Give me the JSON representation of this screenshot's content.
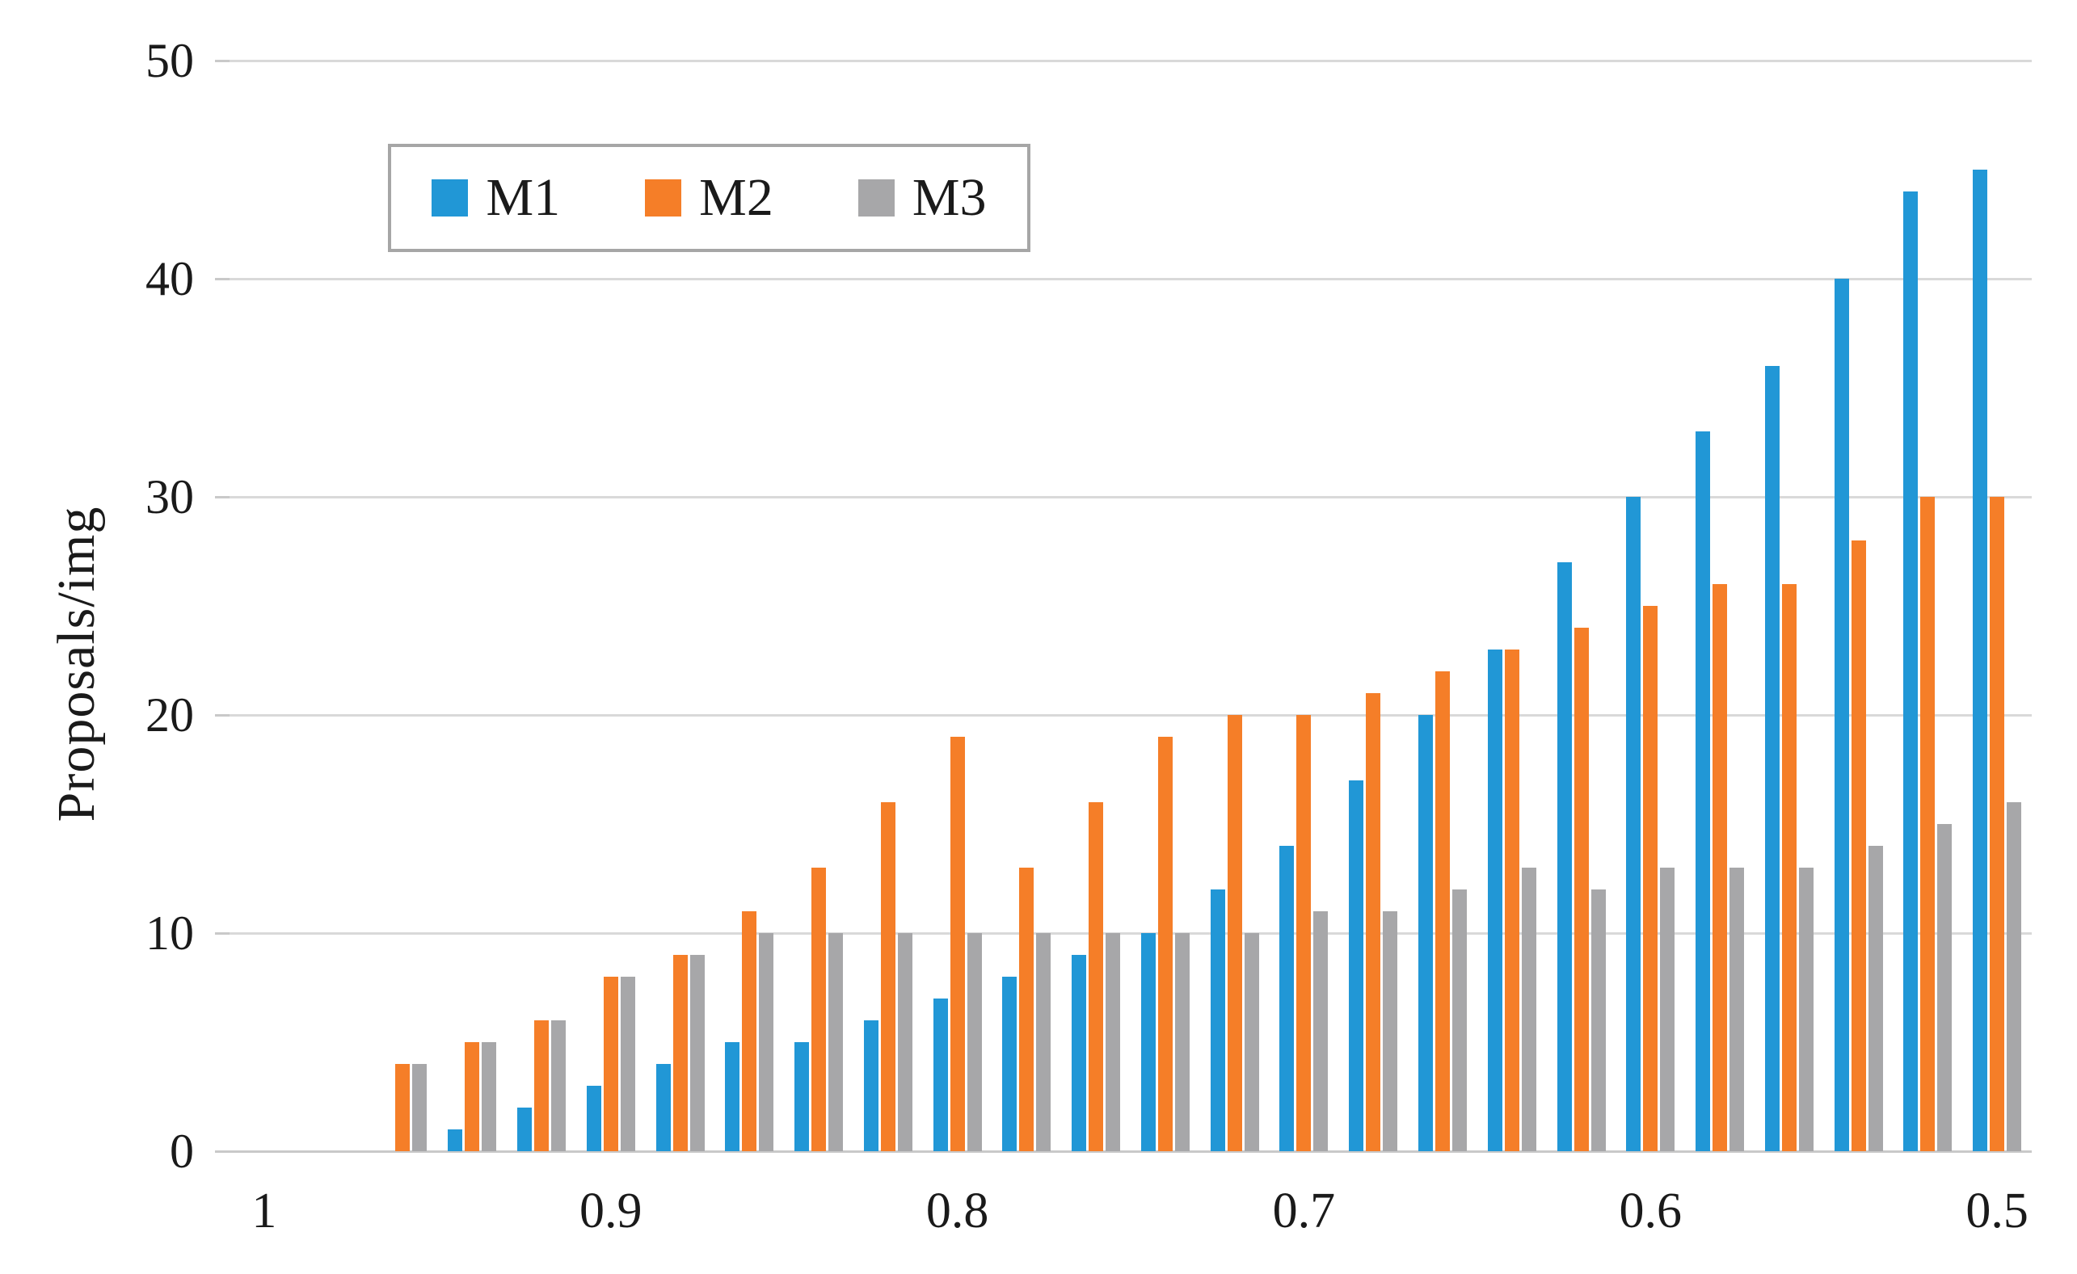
{
  "chart_data": {
    "type": "bar",
    "title": "",
    "xlabel": "",
    "ylabel": "Proposals/img",
    "ylim": [
      0,
      50
    ],
    "y_ticks": [
      0,
      10,
      20,
      30,
      40,
      50
    ],
    "grid": true,
    "legend_position": "top-left-inside",
    "categories": [
      "1",
      "0.98",
      "0.96",
      "0.94",
      "0.92",
      "0.9",
      "0.88",
      "0.86",
      "0.84",
      "0.82",
      "0.8",
      "0.78",
      "0.76",
      "0.74",
      "0.72",
      "0.7",
      "0.68",
      "0.66",
      "0.64",
      "0.62",
      "0.6",
      "0.58",
      "0.56",
      "0.54",
      "0.52",
      "0.5"
    ],
    "x_tick_labels": [
      "1",
      "0.9",
      "0.8",
      "0.7",
      "0.6",
      "0.5"
    ],
    "x_tick_every": 5,
    "series": [
      {
        "name": "M1",
        "color": "#2197d6",
        "values": [
          0,
          0,
          0,
          1,
          2,
          3,
          4,
          5,
          5,
          6,
          7,
          8,
          9,
          10,
          12,
          14,
          17,
          20,
          23,
          27,
          30,
          33,
          36,
          40,
          44,
          45
        ]
      },
      {
        "name": "M2",
        "color": "#f57e28",
        "values": [
          0,
          0,
          4,
          5,
          6,
          8,
          9,
          11,
          13,
          16,
          19,
          13,
          16,
          19,
          20,
          20,
          21,
          22,
          23,
          24,
          25,
          26,
          26,
          28,
          30,
          30
        ]
      },
      {
        "name": "M3",
        "color": "#a7a7a9",
        "values": [
          0,
          0,
          4,
          5,
          6,
          8,
          9,
          10,
          10,
          10,
          10,
          10,
          10,
          10,
          10,
          11,
          11,
          12,
          13,
          12,
          13,
          13,
          13,
          14,
          15,
          16
        ]
      }
    ]
  }
}
